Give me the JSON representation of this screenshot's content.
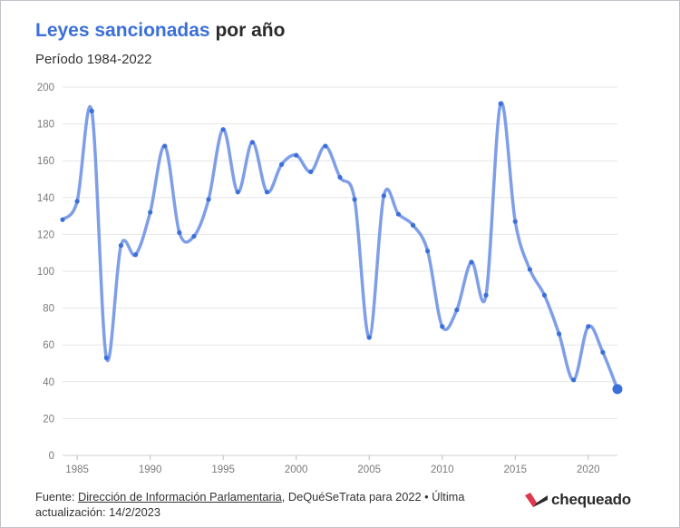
{
  "header": {
    "title_accent": "Leyes sancionadas",
    "title_rest": " por año",
    "subtitle": "Período 1984-2022"
  },
  "footer": {
    "prefix": "Fuente: ",
    "link_text": "Dirección de Información Parlamentaria",
    "suffix": ", DeQuéSeTrata para 2022 • Última actualización: 14/2/2023"
  },
  "brand": {
    "name": "chequeado",
    "mark_colors": [
      "#e0374a",
      "#2b2b2b"
    ]
  },
  "colors": {
    "line": "#7f9ee8",
    "point": "#3b6fd9",
    "accent": "#3b6fd9"
  },
  "chart_data": {
    "type": "line",
    "title": "Leyes sancionadas por año",
    "subtitle": "Período 1984-2022",
    "xlim": [
      1984,
      2022
    ],
    "ylim": [
      0,
      200
    ],
    "x_ticks": [
      1985,
      1990,
      1995,
      2000,
      2005,
      2010,
      2015,
      2020
    ],
    "y_ticks": [
      0,
      20,
      40,
      60,
      80,
      100,
      120,
      140,
      160,
      180,
      200
    ],
    "grid": true,
    "series": [
      {
        "x": [
          1984,
          1985,
          1986,
          1987,
          1988,
          1989,
          1990,
          1991,
          1992,
          1993,
          1994,
          1995,
          1996,
          1997,
          1998,
          1999,
          2000,
          2001,
          2002,
          2003,
          2004,
          2005,
          2006,
          2007,
          2008,
          2009,
          2010,
          2011,
          2012,
          2013,
          2014,
          2015,
          2016,
          2017,
          2018,
          2019,
          2020,
          2021,
          2022
        ],
        "y": [
          128,
          138,
          187,
          53,
          114,
          109,
          132,
          168,
          121,
          119,
          139,
          177,
          143,
          170,
          143,
          158,
          163,
          154,
          168,
          151,
          139,
          64,
          141,
          131,
          125,
          111,
          70,
          79,
          105,
          87,
          191,
          127,
          101,
          87,
          66,
          41,
          70,
          56,
          36
        ]
      }
    ]
  }
}
